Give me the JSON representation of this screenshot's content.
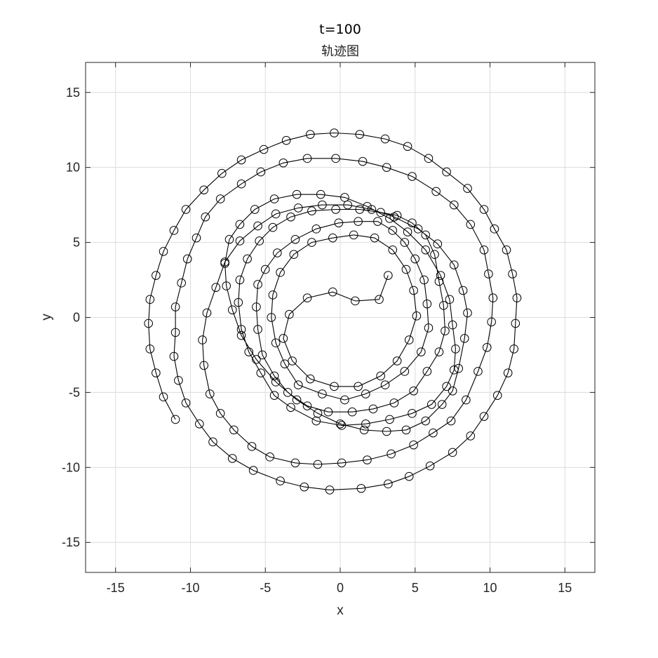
{
  "chart_data": {
    "type": "line",
    "title": "t=100",
    "subtitle": "轨迹图",
    "xlabel": "x",
    "ylabel": "y",
    "xlim": [
      -17,
      17
    ],
    "ylim": [
      -17,
      17
    ],
    "xticks": [
      -15,
      -10,
      -5,
      0,
      5,
      10,
      15
    ],
    "yticks": [
      -15,
      -10,
      -5,
      0,
      5,
      10,
      15
    ],
    "xtick_labels": [
      "-15",
      "-10",
      "-5",
      "0",
      "5",
      "10",
      "15"
    ],
    "ytick_labels": [
      "-15",
      "-10",
      "-5",
      "0",
      "5",
      "10",
      "15"
    ],
    "grid": true,
    "marker": "circle",
    "colors": {
      "line": "#000000",
      "grid": "#dcdcdc",
      "frame": "#262626"
    },
    "series": [
      {
        "x": [
          3.2,
          2.6,
          1.0,
          -0.5,
          -2.2,
          -3.4,
          -3.8,
          -3.2,
          -2.0,
          -0.4,
          1.2,
          2.7,
          3.8,
          4.6,
          5.1,
          4.9,
          4.4,
          3.5,
          2.3,
          0.9,
          -0.5,
          -1.9,
          -3.1,
          -4.0,
          -4.5,
          -4.6,
          -4.3,
          -3.7,
          -2.8,
          -1.2,
          0.3,
          1.7,
          3.0,
          4.3,
          5.4,
          5.9,
          5.8,
          5.6,
          5.0,
          4.3,
          3.5,
          2.5,
          1.2,
          -0.1,
          -1.6,
          -3.0,
          -4.2,
          -5.0,
          -5.5,
          -5.6,
          -5.5,
          -5.2,
          -4.4,
          -3.5,
          -2.2,
          -0.8,
          0.8,
          2.2,
          3.6,
          4.9,
          5.8,
          6.6,
          7.0,
          6.9,
          6.6,
          6.3,
          5.7,
          4.8,
          3.8,
          2.7,
          1.3,
          -0.3,
          -1.9,
          -3.3,
          -4.5,
          -5.4,
          -6.2,
          -6.7,
          -6.8,
          -6.6,
          -6.1,
          -5.3,
          -4.4,
          -3.3,
          -1.6,
          0.1,
          1.7,
          3.3,
          4.8,
          6.1,
          7.1,
          7.6,
          7.7,
          7.5,
          7.3,
          6.7,
          5.7,
          4.5,
          3.3,
          1.8,
          0.3,
          -1.3,
          -2.9,
          -4.4,
          -5.7,
          -6.7,
          -7.4,
          -7.7,
          -7.6,
          -7.2,
          -6.6,
          -5.6,
          -4.3,
          -2.9,
          -1.5,
          0.0,
          1.6,
          3.1,
          4.4,
          5.7,
          6.8,
          7.5,
          7.9,
          8.3,
          8.5,
          8.2,
          7.6,
          6.5,
          5.2,
          3.6,
          2.1,
          0.5,
          -1.2,
          -2.8,
          -4.3,
          -5.5,
          -6.7,
          -7.7,
          -8.3,
          -8.9,
          -9.2,
          -9.1,
          -8.7,
          -8.0,
          -7.1,
          -5.9,
          -4.7,
          -3.0,
          -1.5,
          0.1,
          1.8,
          3.4,
          4.9,
          6.2,
          7.4,
          8.4,
          9.2,
          9.8,
          10.1,
          10.2,
          9.9,
          9.6,
          8.7,
          7.6,
          6.4,
          4.8,
          3.1,
          1.5,
          -0.3,
          -2.2,
          -3.8,
          -5.3,
          -6.6,
          -8.0,
          -9.0,
          -9.6,
          -10.2,
          -10.6,
          -11.0,
          -11.0,
          -11.1,
          -10.8,
          -10.3,
          -9.4,
          -8.5,
          -7.2,
          -5.8,
          -4.0,
          -2.4,
          -0.7,
          1.4,
          3.2,
          4.6,
          6.0,
          7.5,
          8.7,
          9.6,
          10.5,
          11.2,
          11.6,
          11.7,
          11.8,
          11.5,
          11.1,
          10.3,
          9.6,
          8.5,
          7.1,
          5.9,
          4.5,
          3.0,
          1.3,
          -0.4,
          -2.0,
          -3.6,
          -5.1,
          -6.6,
          -7.9,
          -9.1,
          -10.3,
          -11.1,
          -11.8,
          -12.3,
          -12.7,
          -12.8,
          -12.7,
          -12.3,
          -11.8,
          -11.0
        ],
        "y": [
          2.8,
          1.2,
          1.1,
          1.7,
          1.3,
          0.2,
          -1.4,
          -2.9,
          -4.1,
          -4.6,
          -4.6,
          -3.9,
          -2.9,
          -1.5,
          0.1,
          1.8,
          3.2,
          4.5,
          5.3,
          5.5,
          5.3,
          5.0,
          4.2,
          3.0,
          1.5,
          0.0,
          -1.7,
          -3.1,
          -4.5,
          -5.1,
          -5.5,
          -5.1,
          -4.5,
          -3.6,
          -2.3,
          -0.7,
          0.9,
          2.5,
          3.9,
          5.0,
          5.8,
          6.4,
          6.4,
          6.3,
          5.9,
          5.2,
          4.3,
          3.2,
          2.2,
          0.7,
          -0.8,
          -2.5,
          -3.9,
          -5.0,
          -5.9,
          -6.3,
          -6.3,
          -6.1,
          -5.7,
          -4.9,
          -3.6,
          -2.3,
          -0.9,
          0.8,
          2.4,
          4.2,
          5.5,
          6.3,
          6.8,
          7.0,
          7.2,
          7.2,
          7.1,
          6.7,
          6.0,
          5.1,
          3.9,
          2.5,
          1.0,
          -0.8,
          -2.3,
          -3.7,
          -5.2,
          -6.0,
          -6.9,
          -7.2,
          -7.1,
          -6.8,
          -6.4,
          -5.8,
          -4.6,
          -3.5,
          -2.1,
          -0.5,
          1.2,
          2.8,
          4.5,
          5.7,
          6.6,
          7.4,
          8.0,
          8.2,
          8.2,
          7.9,
          7.2,
          6.2,
          5.2,
          3.6,
          2.1,
          0.5,
          -1.2,
          -2.8,
          -4.3,
          -5.5,
          -6.4,
          -7.1,
          -7.5,
          -7.6,
          -7.5,
          -6.9,
          -5.8,
          -4.9,
          -3.4,
          -1.4,
          0.3,
          1.8,
          3.5,
          4.9,
          5.9,
          6.7,
          7.2,
          7.5,
          7.5,
          7.3,
          6.9,
          6.1,
          5.1,
          3.7,
          2.0,
          0.3,
          -1.5,
          -3.2,
          -5.1,
          -6.4,
          -7.5,
          -8.6,
          -9.3,
          -9.7,
          -9.8,
          -9.7,
          -9.5,
          -9.1,
          -8.5,
          -7.7,
          -6.9,
          -5.5,
          -3.6,
          -2.0,
          -0.3,
          1.3,
          2.9,
          4.5,
          6.2,
          7.5,
          8.4,
          9.4,
          10.0,
          10.4,
          10.6,
          10.6,
          10.3,
          9.7,
          8.9,
          7.9,
          6.7,
          5.3,
          3.9,
          2.3,
          0.7,
          -1.0,
          -2.6,
          -4.2,
          -5.7,
          -7.1,
          -8.3,
          -9.4,
          -10.2,
          -10.9,
          -11.3,
          -11.5,
          -11.4,
          -11.1,
          -10.6,
          -9.9,
          -9.0,
          -7.9,
          -6.6,
          -5.2,
          -3.7,
          -2.1,
          -0.4,
          1.3,
          2.9,
          4.5,
          5.9,
          7.2,
          8.6,
          9.7,
          10.6,
          11.4,
          11.9,
          12.2,
          12.3,
          12.2,
          11.8,
          11.2,
          10.5,
          9.6,
          8.5,
          7.2,
          5.8,
          4.4,
          2.8,
          1.2,
          -0.4,
          -2.1,
          -3.7,
          -5.3,
          -6.8
        ]
      }
    ]
  }
}
